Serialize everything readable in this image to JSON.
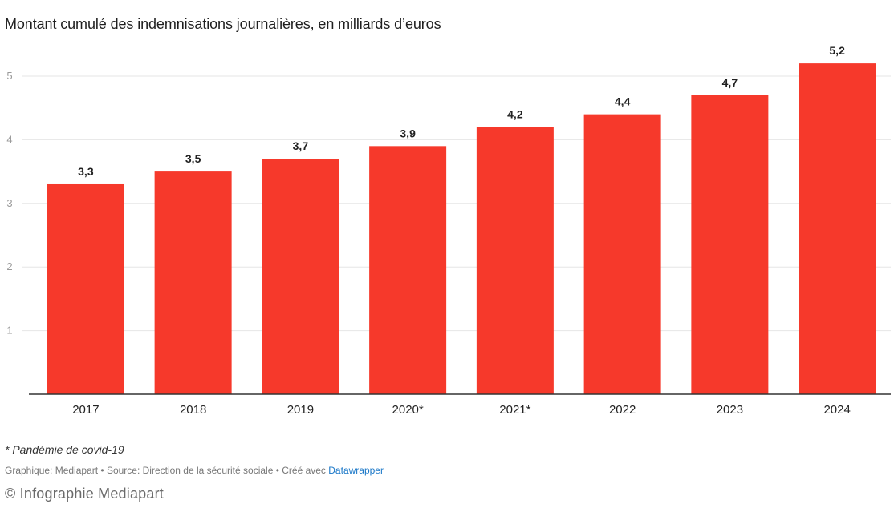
{
  "chart_data": {
    "type": "bar",
    "title": "Montant cumulé des indemnisations journalières, en milliards d’euros",
    "categories": [
      "2017",
      "2018",
      "2019",
      "2020*",
      "2021*",
      "2022",
      "2023",
      "2024"
    ],
    "values": [
      3.3,
      3.5,
      3.7,
      3.9,
      4.2,
      4.4,
      4.7,
      5.2
    ],
    "value_labels": [
      "3,3",
      "3,5",
      "3,7",
      "3,9",
      "4,2",
      "4,4",
      "4,7",
      "5,2"
    ],
    "yticks": [
      "1",
      "2",
      "3",
      "4",
      "5"
    ],
    "ylim": [
      0,
      5
    ],
    "bar_color": "#f6392b",
    "grid": true
  },
  "footnote": "* Pandémie de covid-19",
  "source": {
    "prefix": "Graphique: Mediapart • Source: Direction de la sécurité sociale • Créé avec ",
    "link": "Datawrapper"
  },
  "credit": "© Infographie Mediapart"
}
